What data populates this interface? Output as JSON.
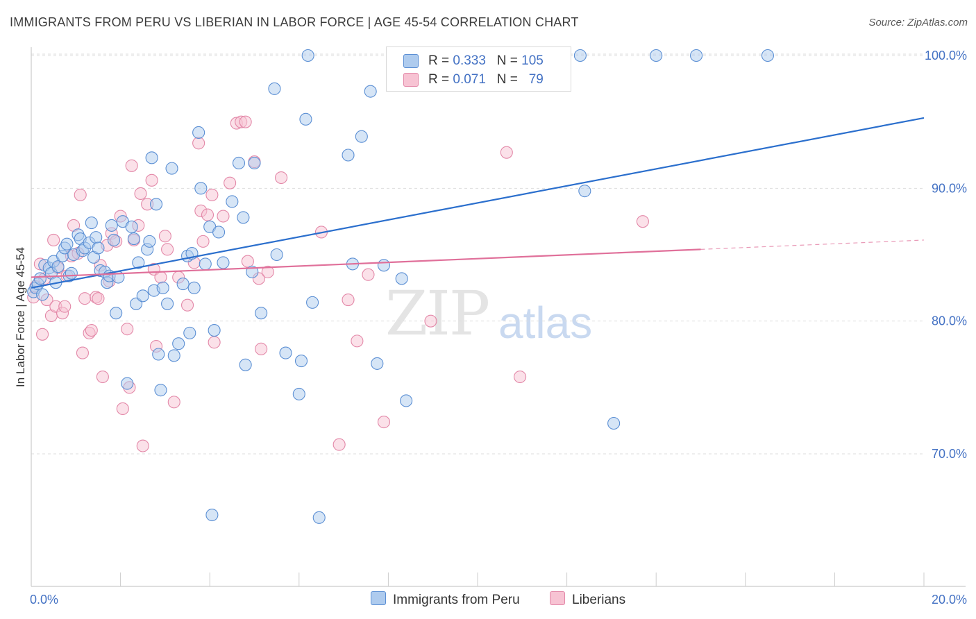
{
  "title": "IMMIGRANTS FROM PERU VS LIBERIAN IN LABOR FORCE | AGE 45-54 CORRELATION CHART",
  "source": "Source: ZipAtlas.com",
  "watermark": {
    "zip": "ZIP",
    "atlas": "atlas"
  },
  "legend_top": {
    "rows": [
      {
        "r_label": "R = ",
        "r_value": "0.333",
        "n_label": "N = ",
        "n_value": "105"
      },
      {
        "r_label": "R = ",
        "r_value": "0.071",
        "n_label": "N = ",
        "n_value": "79"
      }
    ]
  },
  "legend_bottom": [
    "Immigrants from Peru",
    "Liberians"
  ],
  "colors": {
    "peru_fill": "#aecbee",
    "peru_stroke": "#5b8fd4",
    "peru_line": "#2b6fcd",
    "liberian_fill": "#f7c3d3",
    "liberian_stroke": "#e388a8",
    "liberian_line": "#e0709a",
    "tick_text": "#4472c4",
    "grid": "#dddddd"
  },
  "chart_data": {
    "type": "scatter",
    "title": "IMMIGRANTS FROM PERU VS LIBERIAN IN LABOR FORCE | AGE 45-54 CORRELATION CHART",
    "xlabel": "",
    "ylabel": "In Labor Force | Age 45-54",
    "xlim": [
      0,
      20
    ],
    "ylim": [
      61,
      101.5
    ],
    "x_tick_labels": [
      "0.0%",
      "20.0%"
    ],
    "y_tick_labels": [
      "70.0%",
      "80.0%",
      "90.0%",
      "100.0%"
    ],
    "y_ticks": [
      70,
      80,
      90,
      100
    ],
    "grid": true,
    "legend_placement": "top-center",
    "series": [
      {
        "name": "Immigrants from Peru",
        "R": 0.333,
        "N": 105,
        "trend": {
          "x": [
            0,
            20
          ],
          "y": [
            82.5,
            95.3
          ]
        },
        "points": [
          [
            0.05,
            82.2
          ],
          [
            0.1,
            82.5
          ],
          [
            0.15,
            82.8
          ],
          [
            0.2,
            83.2
          ],
          [
            0.25,
            82.0
          ],
          [
            0.3,
            84.2
          ],
          [
            0.4,
            84.0
          ],
          [
            0.45,
            83.6
          ],
          [
            0.5,
            84.5
          ],
          [
            0.55,
            82.9
          ],
          [
            0.6,
            84.1
          ],
          [
            0.7,
            84.9
          ],
          [
            0.75,
            85.5
          ],
          [
            0.8,
            85.8
          ],
          [
            0.85,
            83.4
          ],
          [
            0.9,
            83.6
          ],
          [
            0.95,
            85.0
          ],
          [
            1.05,
            86.5
          ],
          [
            1.1,
            86.2
          ],
          [
            1.15,
            85.3
          ],
          [
            1.2,
            85.5
          ],
          [
            1.3,
            85.9
          ],
          [
            1.35,
            87.4
          ],
          [
            1.4,
            84.8
          ],
          [
            1.45,
            86.3
          ],
          [
            1.5,
            85.5
          ],
          [
            1.55,
            83.8
          ],
          [
            1.65,
            83.7
          ],
          [
            1.7,
            82.9
          ],
          [
            1.75,
            83.4
          ],
          [
            1.8,
            87.2
          ],
          [
            1.85,
            86.1
          ],
          [
            1.9,
            80.6
          ],
          [
            1.95,
            83.3
          ],
          [
            2.05,
            87.5
          ],
          [
            2.15,
            75.3
          ],
          [
            2.25,
            87.1
          ],
          [
            2.3,
            86.2
          ],
          [
            2.35,
            81.3
          ],
          [
            2.4,
            84.4
          ],
          [
            2.5,
            81.9
          ],
          [
            2.6,
            85.4
          ],
          [
            2.65,
            86.0
          ],
          [
            2.7,
            92.3
          ],
          [
            2.75,
            82.3
          ],
          [
            2.8,
            88.8
          ],
          [
            2.85,
            77.5
          ],
          [
            2.9,
            74.8
          ],
          [
            2.95,
            82.5
          ],
          [
            3.05,
            81.3
          ],
          [
            3.15,
            91.5
          ],
          [
            3.2,
            77.4
          ],
          [
            3.3,
            78.3
          ],
          [
            3.4,
            82.8
          ],
          [
            3.5,
            84.9
          ],
          [
            3.55,
            79.1
          ],
          [
            3.6,
            85.1
          ],
          [
            3.65,
            82.5
          ],
          [
            3.75,
            94.2
          ],
          [
            3.8,
            90.0
          ],
          [
            3.9,
            84.3
          ],
          [
            4.0,
            87.1
          ],
          [
            4.05,
            65.4
          ],
          [
            4.1,
            79.3
          ],
          [
            4.2,
            86.7
          ],
          [
            4.3,
            84.4
          ],
          [
            4.5,
            89.0
          ],
          [
            4.65,
            91.9
          ],
          [
            4.75,
            87.8
          ],
          [
            4.8,
            76.7
          ],
          [
            4.95,
            83.7
          ],
          [
            5.0,
            91.9
          ],
          [
            5.15,
            80.6
          ],
          [
            5.45,
            97.5
          ],
          [
            5.5,
            85.0
          ],
          [
            5.7,
            77.6
          ],
          [
            6.0,
            74.5
          ],
          [
            6.05,
            77.0
          ],
          [
            6.15,
            95.2
          ],
          [
            6.2,
            100.0
          ],
          [
            6.3,
            81.4
          ],
          [
            6.45,
            65.2
          ],
          [
            7.1,
            92.5
          ],
          [
            7.2,
            84.3
          ],
          [
            7.4,
            93.9
          ],
          [
            7.6,
            97.3
          ],
          [
            7.75,
            76.8
          ],
          [
            7.9,
            84.2
          ],
          [
            8.3,
            83.2
          ],
          [
            8.4,
            74.0
          ],
          [
            9.6,
            100.0
          ],
          [
            10.5,
            100.0
          ],
          [
            12.4,
            89.8
          ],
          [
            12.3,
            100.0
          ],
          [
            13.05,
            72.3
          ],
          [
            14.0,
            100.0
          ],
          [
            14.9,
            100.0
          ],
          [
            16.5,
            100.0
          ]
        ]
      },
      {
        "name": "Liberians",
        "R": 0.071,
        "N": 79,
        "trend": {
          "x": [
            0,
            15
          ],
          "y": [
            83.3,
            85.4
          ]
        },
        "points": [
          [
            0.05,
            81.8
          ],
          [
            0.1,
            82.6
          ],
          [
            0.2,
            84.3
          ],
          [
            0.25,
            79.0
          ],
          [
            0.3,
            83.2
          ],
          [
            0.35,
            81.6
          ],
          [
            0.45,
            80.4
          ],
          [
            0.5,
            86.1
          ],
          [
            0.55,
            81.1
          ],
          [
            0.6,
            84.0
          ],
          [
            0.7,
            80.6
          ],
          [
            0.75,
            81.1
          ],
          [
            0.8,
            83.4
          ],
          [
            0.9,
            84.9
          ],
          [
            0.95,
            87.2
          ],
          [
            1.05,
            85.1
          ],
          [
            1.1,
            89.5
          ],
          [
            1.15,
            77.6
          ],
          [
            1.2,
            81.7
          ],
          [
            1.3,
            79.1
          ],
          [
            1.35,
            79.3
          ],
          [
            1.45,
            81.8
          ],
          [
            1.5,
            81.7
          ],
          [
            1.55,
            84.2
          ],
          [
            1.6,
            75.8
          ],
          [
            1.7,
            85.7
          ],
          [
            1.75,
            83.0
          ],
          [
            1.8,
            86.6
          ],
          [
            1.9,
            86.0
          ],
          [
            2.0,
            87.9
          ],
          [
            2.05,
            73.4
          ],
          [
            2.15,
            79.4
          ],
          [
            2.2,
            75.0
          ],
          [
            2.25,
            91.7
          ],
          [
            2.3,
            86.1
          ],
          [
            2.4,
            87.2
          ],
          [
            2.45,
            89.6
          ],
          [
            2.5,
            70.6
          ],
          [
            2.6,
            88.8
          ],
          [
            2.7,
            90.6
          ],
          [
            2.75,
            83.9
          ],
          [
            2.8,
            78.1
          ],
          [
            2.9,
            83.3
          ],
          [
            3.0,
            86.4
          ],
          [
            3.05,
            85.4
          ],
          [
            3.2,
            73.9
          ],
          [
            3.3,
            83.3
          ],
          [
            3.5,
            81.2
          ],
          [
            3.65,
            84.4
          ],
          [
            3.75,
            93.4
          ],
          [
            3.8,
            88.3
          ],
          [
            3.85,
            86.0
          ],
          [
            3.95,
            88.0
          ],
          [
            4.05,
            89.5
          ],
          [
            4.1,
            78.4
          ],
          [
            4.3,
            87.9
          ],
          [
            4.45,
            90.4
          ],
          [
            4.6,
            94.9
          ],
          [
            4.7,
            95.0
          ],
          [
            4.85,
            84.5
          ],
          [
            5.0,
            92.0
          ],
          [
            5.1,
            83.2
          ],
          [
            5.15,
            77.9
          ],
          [
            5.3,
            83.7
          ],
          [
            5.6,
            90.8
          ],
          [
            6.5,
            86.7
          ],
          [
            6.9,
            70.7
          ],
          [
            7.1,
            81.6
          ],
          [
            7.3,
            78.5
          ],
          [
            7.55,
            83.5
          ],
          [
            7.9,
            72.4
          ],
          [
            8.95,
            80.0
          ],
          [
            10.65,
            92.7
          ],
          [
            10.95,
            75.8
          ],
          [
            13.7,
            87.5
          ],
          [
            4.8,
            95.0
          ]
        ]
      }
    ]
  }
}
